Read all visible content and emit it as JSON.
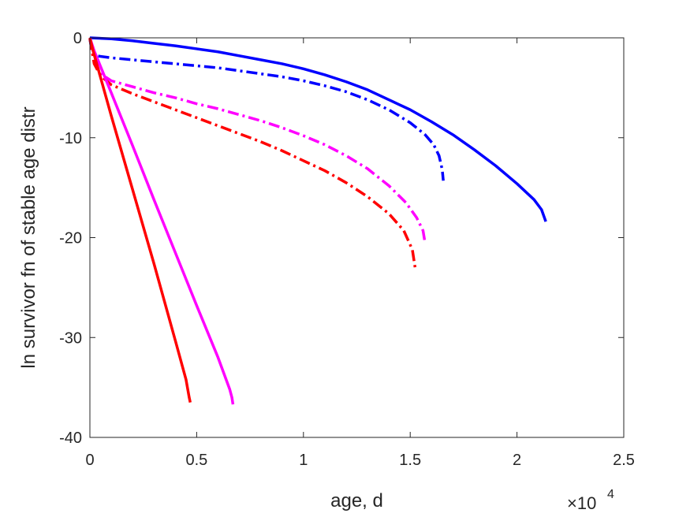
{
  "chart_data": {
    "type": "line",
    "title": "",
    "xlabel": "age, d",
    "ylabel": "ln survivor fn of stable age distr",
    "x_exponent_label": {
      "base": "×10",
      "exp": "4"
    },
    "xlim": [
      0,
      25000
    ],
    "ylim": [
      -40,
      0
    ],
    "x_ticks": [
      {
        "value": 0,
        "label": "0"
      },
      {
        "value": 5000,
        "label": "0.5"
      },
      {
        "value": 10000,
        "label": "1"
      },
      {
        "value": 15000,
        "label": "1.5"
      },
      {
        "value": 20000,
        "label": "2"
      },
      {
        "value": 25000,
        "label": "2.5"
      }
    ],
    "y_ticks": [
      {
        "value": 0,
        "label": "0"
      },
      {
        "value": -10,
        "label": "-10"
      },
      {
        "value": -20,
        "label": "-20"
      },
      {
        "value": -30,
        "label": "-30"
      },
      {
        "value": -40,
        "label": "-40"
      }
    ],
    "grid": false,
    "series": [
      {
        "color": "#0000ff",
        "dash": "solid",
        "points": [
          [
            0,
            0
          ],
          [
            1000,
            -0.1
          ],
          [
            2000,
            -0.3
          ],
          [
            3000,
            -0.55
          ],
          [
            4000,
            -0.8
          ],
          [
            5000,
            -1.1
          ],
          [
            6000,
            -1.4
          ],
          [
            7000,
            -1.8
          ],
          [
            8000,
            -2.2
          ],
          [
            9000,
            -2.6
          ],
          [
            10000,
            -3.1
          ],
          [
            11000,
            -3.7
          ],
          [
            12000,
            -4.4
          ],
          [
            13000,
            -5.2
          ],
          [
            14000,
            -6.2
          ],
          [
            15000,
            -7.2
          ],
          [
            16000,
            -8.4
          ],
          [
            17000,
            -9.7
          ],
          [
            18000,
            -11.2
          ],
          [
            19000,
            -12.8
          ],
          [
            20000,
            -14.6
          ],
          [
            20800,
            -16.2
          ],
          [
            21150,
            -17.2
          ],
          [
            21350,
            -18.4
          ]
        ]
      },
      {
        "color": "#0000ff",
        "dash": "dashdot",
        "points": [
          [
            0,
            -0.1
          ],
          [
            100,
            -1.5
          ],
          [
            300,
            -1.8
          ],
          [
            1000,
            -2.0
          ],
          [
            2000,
            -2.2
          ],
          [
            3000,
            -2.4
          ],
          [
            4000,
            -2.6
          ],
          [
            5000,
            -2.8
          ],
          [
            6000,
            -3.0
          ],
          [
            7000,
            -3.3
          ],
          [
            8000,
            -3.6
          ],
          [
            9000,
            -3.9
          ],
          [
            10000,
            -4.3
          ],
          [
            11000,
            -4.8
          ],
          [
            12000,
            -5.4
          ],
          [
            13000,
            -6.2
          ],
          [
            14000,
            -7.2
          ],
          [
            15000,
            -8.5
          ],
          [
            15700,
            -9.7
          ],
          [
            16100,
            -10.7
          ],
          [
            16350,
            -11.8
          ],
          [
            16500,
            -13.2
          ],
          [
            16550,
            -14.3
          ]
        ]
      },
      {
        "color": "#ff00ff",
        "dash": "dashdot",
        "points": [
          [
            0,
            -0.1
          ],
          [
            200,
            -2.2
          ],
          [
            500,
            -3.6
          ],
          [
            1000,
            -4.3
          ],
          [
            2000,
            -4.9
          ],
          [
            3000,
            -5.5
          ],
          [
            4000,
            -6.0
          ],
          [
            5000,
            -6.6
          ],
          [
            6000,
            -7.1
          ],
          [
            7000,
            -7.7
          ],
          [
            8000,
            -8.3
          ],
          [
            9000,
            -9.0
          ],
          [
            10000,
            -9.8
          ],
          [
            11000,
            -10.7
          ],
          [
            12000,
            -11.8
          ],
          [
            13000,
            -13.1
          ],
          [
            14000,
            -14.8
          ],
          [
            14800,
            -16.5
          ],
          [
            15300,
            -18.0
          ],
          [
            15600,
            -19.3
          ],
          [
            15700,
            -20.6
          ]
        ]
      },
      {
        "color": "#ff0000",
        "dash": "dashdot",
        "points": [
          [
            0,
            -0.1
          ],
          [
            200,
            -2.6
          ],
          [
            500,
            -3.8
          ],
          [
            1000,
            -4.7
          ],
          [
            2000,
            -5.6
          ],
          [
            3000,
            -6.4
          ],
          [
            4000,
            -7.2
          ],
          [
            5000,
            -8.0
          ],
          [
            6000,
            -8.8
          ],
          [
            7000,
            -9.6
          ],
          [
            8000,
            -10.4
          ],
          [
            9000,
            -11.3
          ],
          [
            10000,
            -12.3
          ],
          [
            11000,
            -13.3
          ],
          [
            12000,
            -14.5
          ],
          [
            13000,
            -15.9
          ],
          [
            14000,
            -17.6
          ],
          [
            14700,
            -19.3
          ],
          [
            15100,
            -21.2
          ],
          [
            15250,
            -23.3
          ]
        ]
      },
      {
        "color": "#ff00ff",
        "dash": "solid",
        "points": [
          [
            0,
            0
          ],
          [
            200,
            -1.3
          ],
          [
            1000,
            -5.5
          ],
          [
            2000,
            -10.8
          ],
          [
            3000,
            -16.2
          ],
          [
            4000,
            -21.5
          ],
          [
            5000,
            -26.8
          ],
          [
            6000,
            -32.0
          ],
          [
            6550,
            -35.2
          ],
          [
            6650,
            -36.0
          ],
          [
            6700,
            -36.7
          ]
        ]
      },
      {
        "color": "#ff0000",
        "dash": "solid",
        "points": [
          [
            0,
            0
          ],
          [
            150,
            -1.3
          ],
          [
            1000,
            -7.8
          ],
          [
            2000,
            -15.2
          ],
          [
            3000,
            -22.6
          ],
          [
            4000,
            -30.3
          ],
          [
            4500,
            -34.2
          ],
          [
            4650,
            -36.0
          ],
          [
            4700,
            -36.5
          ]
        ]
      }
    ]
  }
}
